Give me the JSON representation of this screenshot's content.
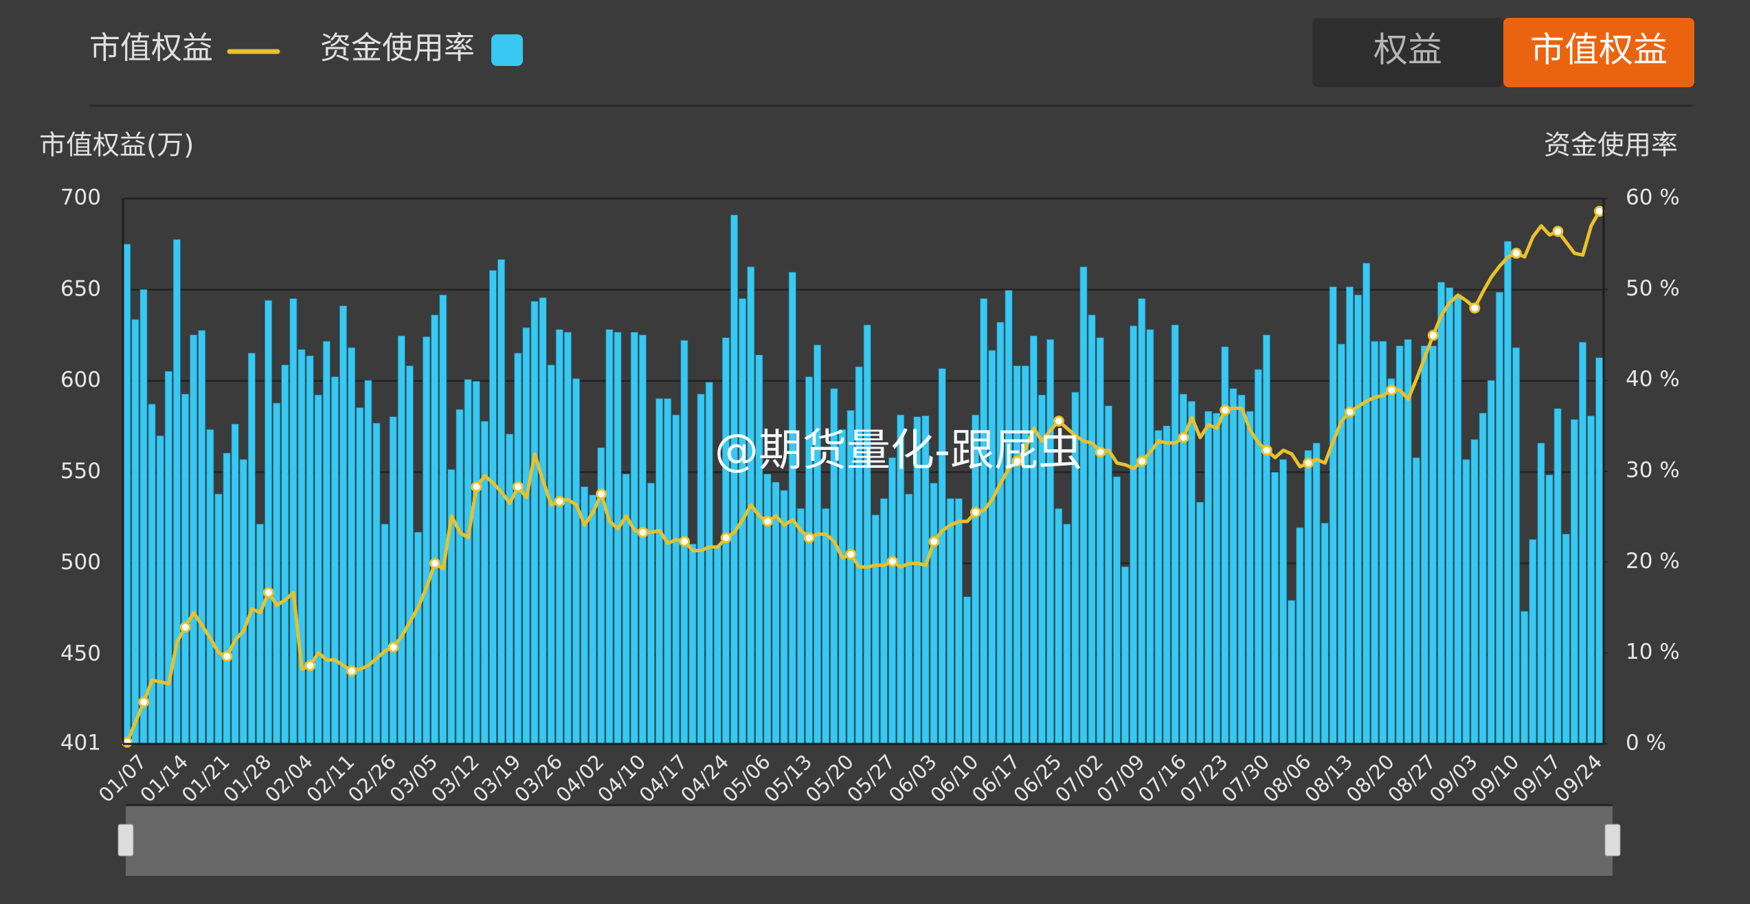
{
  "controls": {
    "buttons": [
      "权益",
      "市值权益"
    ],
    "active": 1
  },
  "watermark": "@期货量化-跟屁虫",
  "chart_data": {
    "type": "bar",
    "y_label": "市值权益(万)",
    "y2_label": "资金使用率",
    "categories": [
      null,
      null,
      "01/07",
      null,
      null,
      null,
      null,
      "01/14",
      null,
      null,
      null,
      null,
      "01/21",
      null,
      null,
      null,
      null,
      "01/28",
      null,
      null,
      null,
      null,
      "02/04",
      null,
      null,
      null,
      null,
      "02/11",
      null,
      null,
      null,
      null,
      "02/26",
      null,
      null,
      null,
      null,
      "03/05",
      null,
      null,
      null,
      null,
      "03/12",
      null,
      null,
      null,
      null,
      "03/19",
      null,
      null,
      null,
      null,
      "03/26",
      null,
      null,
      null,
      null,
      "04/02",
      null,
      null,
      null,
      null,
      "04/10",
      null,
      null,
      null,
      null,
      "04/17",
      null,
      null,
      null,
      null,
      "04/24",
      null,
      null,
      null,
      null,
      "05/06",
      null,
      null,
      null,
      null,
      "05/13",
      null,
      null,
      null,
      null,
      "05/20",
      null,
      null,
      null,
      null,
      "05/27",
      null,
      null,
      null,
      null,
      "06/03",
      null,
      null,
      null,
      null,
      "06/10",
      null,
      null,
      null,
      null,
      "06/17",
      null,
      null,
      null,
      null,
      "06/25",
      null,
      null,
      null,
      null,
      "07/02",
      null,
      null,
      null,
      null,
      "07/09",
      null,
      null,
      null,
      null,
      "07/16",
      null,
      null,
      null,
      null,
      "07/23",
      null,
      null,
      null,
      null,
      "07/30",
      null,
      null,
      null,
      null,
      "08/06",
      null,
      null,
      null,
      null,
      "08/13",
      null,
      null,
      null,
      null,
      "08/20",
      null,
      null,
      null,
      null,
      "08/27",
      null,
      null,
      null,
      null,
      "09/03",
      null,
      null,
      null,
      null,
      "09/10",
      null,
      null,
      null,
      null,
      "09/17",
      null,
      null,
      null,
      null,
      "09/24"
    ],
    "series": [
      {
        "name": "市值权益",
        "type": "line",
        "axis": "y",
        "color": "#e9c12a",
        "values": [
          402,
          413,
          424,
          436,
          435,
          434,
          457,
          465,
          473,
          466,
          459,
          451,
          449,
          458,
          463,
          475,
          473,
          484,
          477,
          480,
          484,
          442,
          444,
          451,
          447,
          447,
          444,
          441,
          442,
          444,
          448,
          452,
          454,
          460,
          468,
          476,
          487,
          500,
          497,
          526,
          517,
          514,
          542,
          548,
          544,
          539,
          533,
          542,
          536,
          560,
          545,
          532,
          534,
          535,
          532,
          521,
          528,
          538,
          523,
          519,
          526,
          518,
          517,
          517,
          518,
          511,
          513,
          512,
          507,
          507,
          509,
          509,
          514,
          517,
          524,
          532,
          526,
          523,
          526,
          521,
          524,
          518,
          514,
          516,
          516,
          512,
          503,
          505,
          498,
          498,
          499,
          499,
          501,
          498,
          500,
          500,
          499,
          512,
          518,
          521,
          523,
          523,
          528,
          529,
          535,
          544,
          552,
          556,
          563,
          574,
          567,
          573,
          578,
          574,
          570,
          567,
          566,
          561,
          562,
          555,
          554,
          552,
          556,
          561,
          567,
          566,
          566,
          569,
          580,
          569,
          576,
          574,
          584,
          585,
          585,
          573,
          566,
          562,
          558,
          562,
          560,
          553,
          555,
          557,
          555,
          567,
          578,
          583,
          586,
          589,
          591,
          592,
          595,
          595,
          590,
          601,
          613,
          625,
          636,
          643,
          647,
          644,
          640,
          649,
          657,
          663,
          668,
          670,
          668,
          679,
          685,
          680,
          682,
          676,
          670,
          669,
          685,
          693
        ]
      },
      {
        "name": "资金使用率",
        "type": "bar",
        "axis": "y2",
        "color": "#38c8f2",
        "values": [
          55,
          46.7,
          50,
          37.4,
          33.9,
          41,
          55.5,
          38.5,
          45,
          45.5,
          34.6,
          27.5,
          32,
          35.2,
          31.3,
          43,
          24.2,
          48.8,
          37.5,
          41.7,
          49,
          43.4,
          42.7,
          38.4,
          44.3,
          40.4,
          48.2,
          43.6,
          37,
          40,
          35.3,
          24.2,
          36,
          44.9,
          41.6,
          23.3,
          44.8,
          47.2,
          49.4,
          30.2,
          36.8,
          40.1,
          39.9,
          35.5,
          52.1,
          53.3,
          34.1,
          43,
          45.8,
          48.7,
          49.1,
          41.7,
          45.6,
          45.3,
          40.2,
          28.3,
          27.4,
          32.6,
          45.6,
          45.3,
          29.7,
          45.3,
          45,
          28.7,
          38,
          38,
          36.2,
          44.4,
          22,
          38.5,
          39.8,
          21.8,
          44.7,
          58.2,
          49,
          52.5,
          42.8,
          29.7,
          28.8,
          27.9,
          51.9,
          25.9,
          40.4,
          43.9,
          25.9,
          39.1,
          34.6,
          36.7,
          41.5,
          46.1,
          25.2,
          27,
          31.5,
          36.2,
          27.5,
          36,
          36.1,
          28.7,
          41.3,
          27,
          27,
          16.2,
          36.2,
          49,
          43.3,
          46.4,
          49.9,
          41.6,
          41.6,
          44.9,
          38.4,
          44.5,
          25.9,
          24.2,
          38.7,
          52.5,
          47.2,
          44.7,
          37.2,
          29.4,
          19.5,
          46,
          49,
          45.6,
          34.5,
          35,
          46.1,
          38.5,
          37.7,
          26.6,
          36.6,
          36.4,
          43.7,
          39.1,
          38.4,
          36.6,
          41.2,
          45,
          29.9,
          31.3,
          15.8,
          23.8,
          32.3,
          33.1,
          24.3,
          50.3,
          44,
          50.3,
          49.4,
          52.9,
          44.3,
          44.3,
          40.2,
          43.8,
          44.5,
          31.5,
          43.8,
          43.8,
          50.8,
          50.2,
          49.4,
          31.3,
          33.5,
          36.4,
          40,
          49.7,
          55.3,
          43.6,
          14.6,
          22.5,
          33.1,
          29.6,
          36.9,
          23.1,
          35.7,
          44.2,
          36.1,
          42.5
        ]
      }
    ],
    "ylim": [
      401,
      700
    ],
    "yticks": [
      401,
      450,
      500,
      550,
      600,
      650,
      700
    ],
    "y2lim": [
      0,
      60
    ],
    "y2ticks": [
      {
        "value": 0,
        "label": "0 %"
      },
      {
        "value": 10,
        "label": "10 %"
      },
      {
        "value": 20,
        "label": "20 %"
      },
      {
        "value": 30,
        "label": "30 %"
      },
      {
        "value": 40,
        "label": "40 %"
      },
      {
        "value": 50,
        "label": "50 %"
      },
      {
        "value": 60,
        "label": "60 %"
      }
    ],
    "grid": true
  }
}
